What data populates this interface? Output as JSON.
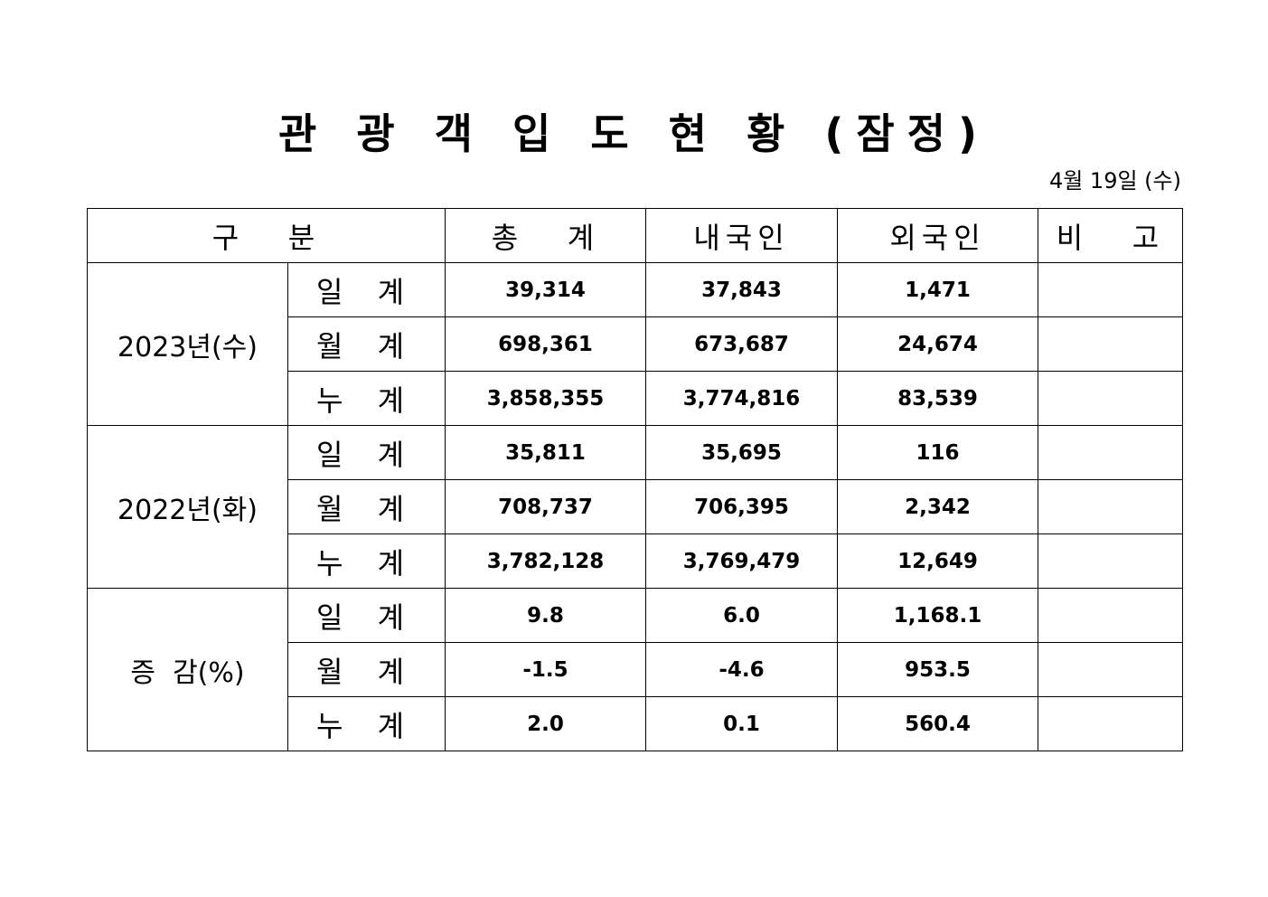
{
  "title": "관 광 객 입 도 현 황 (잠정)",
  "date": "4월 19일 (수)",
  "headers": {
    "category": "구   분",
    "total": "총   계",
    "domestic": "내국인",
    "foreign": "외국인",
    "note": "비   고"
  },
  "groups": [
    {
      "label": "2023년(수)",
      "rows": [
        {
          "label": "일 계",
          "total": "39,314",
          "domestic": "37,843",
          "foreign": "1,471",
          "note": ""
        },
        {
          "label": "월 계",
          "total": "698,361",
          "domestic": "673,687",
          "foreign": "24,674",
          "note": ""
        },
        {
          "label": "누 계",
          "total": "3,858,355",
          "domestic": "3,774,816",
          "foreign": "83,539",
          "note": ""
        }
      ]
    },
    {
      "label": "2022년(화)",
      "rows": [
        {
          "label": "일 계",
          "total": "35,811",
          "domestic": "35,695",
          "foreign": "116",
          "note": ""
        },
        {
          "label": "월 계",
          "total": "708,737",
          "domestic": "706,395",
          "foreign": "2,342",
          "note": ""
        },
        {
          "label": "누 계",
          "total": "3,782,128",
          "domestic": "3,769,479",
          "foreign": "12,649",
          "note": ""
        }
      ]
    },
    {
      "label": "증  감(%)",
      "rows": [
        {
          "label": "일 계",
          "total": "9.8",
          "domestic": "6.0",
          "foreign": "1,168.1",
          "note": ""
        },
        {
          "label": "월 계",
          "total": "-1.5",
          "domestic": "-4.6",
          "foreign": "953.5",
          "note": ""
        },
        {
          "label": "누 계",
          "total": "2.0",
          "domestic": "0.1",
          "foreign": "560.4",
          "note": ""
        }
      ]
    }
  ]
}
